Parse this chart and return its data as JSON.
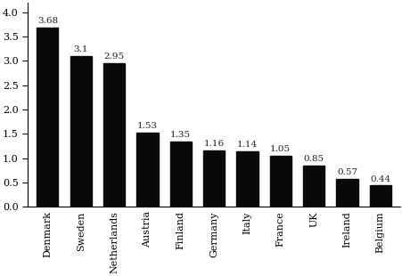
{
  "categories": [
    "Denmark",
    "Sweden",
    "Netherlands",
    "Austria",
    "Finland",
    "Germany",
    "Italy",
    "France",
    "UK",
    "Ireland",
    "Belgium"
  ],
  "values": [
    3.68,
    3.1,
    2.95,
    1.53,
    1.35,
    1.16,
    1.14,
    1.05,
    0.85,
    0.57,
    0.44
  ],
  "bar_color": "#0a0a0a",
  "value_labels": [
    "3.68",
    "3.1",
    "2.95",
    "1.53",
    "1.35",
    "1.16",
    "1.14",
    "1.05",
    "0.85",
    "0.57",
    "0.44"
  ],
  "ylim": [
    0,
    4.2
  ],
  "yticks": [
    0.0,
    0.5,
    1.0,
    1.5,
    2.0,
    2.5,
    3.0,
    3.5,
    4.0
  ],
  "ylabel": "",
  "xlabel": "",
  "title": "",
  "background_color": "#ffffff",
  "tick_fontsize": 8,
  "value_label_fontsize": 7.5,
  "bar_width": 0.65
}
